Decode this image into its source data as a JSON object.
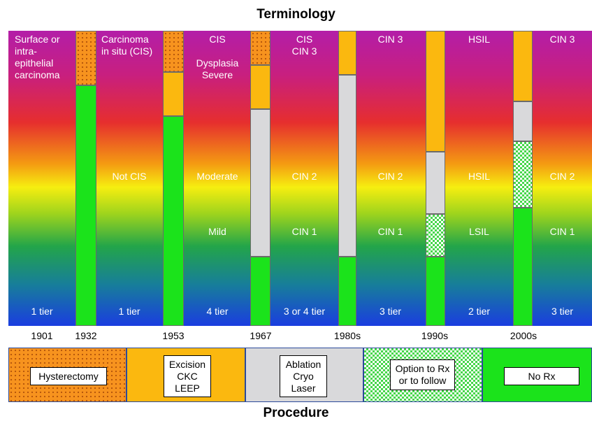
{
  "titles": {
    "terminology": "Terminology",
    "procedure": "Procedure"
  },
  "columns": [
    {
      "top": "Surface or\nintra-\nepithelial\ncarcinoma",
      "mid": "",
      "low": "",
      "tier": "1 tier"
    },
    {
      "top": "Carcinoma\nin situ (CIS)",
      "mid": "Not CIS",
      "low": "",
      "tier": "1 tier"
    },
    {
      "top": "CIS\n\nDysplasia\nSevere",
      "mid": "Moderate",
      "low": "Mild",
      "tier": "4 tier"
    },
    {
      "top": "CIS\nCIN 3",
      "mid": "CIN 2",
      "low": "CIN 1",
      "tier": "3 or 4 tier"
    },
    {
      "top": "CIN 3",
      "mid": "CIN 2",
      "low": "CIN 1",
      "tier": "3 tier"
    },
    {
      "top": "HSIL",
      "mid": "HSIL",
      "low": "LSIL",
      "tier": "2 tier"
    },
    {
      "top": "CIN 3",
      "mid": "CIN 2",
      "low": "CIN 1",
      "tier": "3 tier"
    }
  ],
  "years": [
    "1901",
    "1932",
    "1953",
    "1967",
    "1980s",
    "1990s",
    "2000s"
  ],
  "procedure_bars": [
    {
      "year": "1932",
      "segments": [
        {
          "type": "hysterectomy",
          "to": 0.185
        },
        {
          "type": "no_rx",
          "to": 1
        }
      ]
    },
    {
      "year": "1953",
      "segments": [
        {
          "type": "hysterectomy",
          "to": 0.14
        },
        {
          "type": "excision",
          "to": 0.29
        },
        {
          "type": "no_rx",
          "to": 1
        }
      ]
    },
    {
      "year": "1967",
      "segments": [
        {
          "type": "hysterectomy",
          "to": 0.115
        },
        {
          "type": "excision",
          "to": 0.265
        },
        {
          "type": "ablation",
          "to": 0.765
        },
        {
          "type": "no_rx",
          "to": 1
        }
      ]
    },
    {
      "year": "1980s",
      "segments": [
        {
          "type": "excision",
          "to": 0.15
        },
        {
          "type": "ablation",
          "to": 0.765
        },
        {
          "type": "no_rx",
          "to": 1
        }
      ]
    },
    {
      "year": "1990s",
      "segments": [
        {
          "type": "excision",
          "to": 0.41
        },
        {
          "type": "ablation",
          "to": 0.62
        },
        {
          "type": "option",
          "to": 0.765
        },
        {
          "type": "no_rx",
          "to": 1
        }
      ]
    },
    {
      "year": "2000s",
      "segments": [
        {
          "type": "excision",
          "to": 0.24
        },
        {
          "type": "ablation",
          "to": 0.375
        },
        {
          "type": "option",
          "to": 0.6
        },
        {
          "type": "no_rx",
          "to": 1
        }
      ]
    }
  ],
  "legend": [
    {
      "type": "hysterectomy",
      "label": "Hysterectomy"
    },
    {
      "type": "excision",
      "label": "Excision\nCKC\nLEEP"
    },
    {
      "type": "ablation",
      "label": "Ablation\nCryo\nLaser"
    },
    {
      "type": "option",
      "label": "Option to Rx\nor to follow"
    },
    {
      "type": "no_rx",
      "label": "No Rx"
    }
  ],
  "colors": {
    "hysterectomy": "#f7931e",
    "excision": "#fbb80f",
    "ablation": "#d9d9db",
    "option": "#46d64a",
    "no_rx": "#1be31b"
  }
}
